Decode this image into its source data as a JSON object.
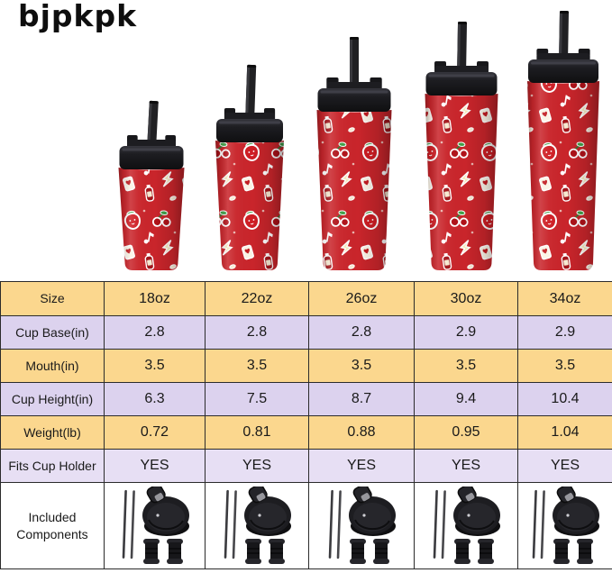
{
  "brand": {
    "logo_text": "bjpkpk"
  },
  "product": {
    "name": "red sticker-pattern insulated tumblers with straws",
    "sizes": [
      "18oz",
      "22oz",
      "26oz",
      "30oz",
      "34oz"
    ],
    "colors": {
      "cup_red": "#c9252b",
      "lid_black": "#1b1b1e"
    }
  },
  "table": {
    "header": {
      "label": "Size",
      "columns": [
        "18oz",
        "22oz",
        "26oz",
        "30oz",
        "34oz"
      ]
    },
    "rows": [
      {
        "label": "Cup Base(in)",
        "values": [
          "2.8",
          "2.8",
          "2.8",
          "2.9",
          "2.9"
        ]
      },
      {
        "label": "Mouth(in)",
        "values": [
          "3.5",
          "3.5",
          "3.5",
          "3.5",
          "3.5"
        ]
      },
      {
        "label": "Cup Height(in)",
        "values": [
          "6.3",
          "7.5",
          "8.7",
          "9.4",
          "10.4"
        ]
      },
      {
        "label": "Weight(lb)",
        "values": [
          "0.72",
          "0.81",
          "0.88",
          "0.95",
          "1.04"
        ]
      },
      {
        "label": "Fits Cup Holder",
        "values": [
          "YES",
          "YES",
          "YES",
          "YES",
          "YES"
        ]
      },
      {
        "label": "Included Components",
        "type": "components",
        "component_icons": [
          "straw-pair-icon",
          "flip-top-lid-icon",
          "gasket-plugs-icon"
        ]
      }
    ],
    "style": {
      "row_amber": "#fbd78e",
      "row_lavender": "#dcd2ee",
      "row_lavender_light": "#e7dff4",
      "row_white": "#ffffff",
      "border": "#2b2b2b",
      "text": "#1a1a1a"
    }
  }
}
